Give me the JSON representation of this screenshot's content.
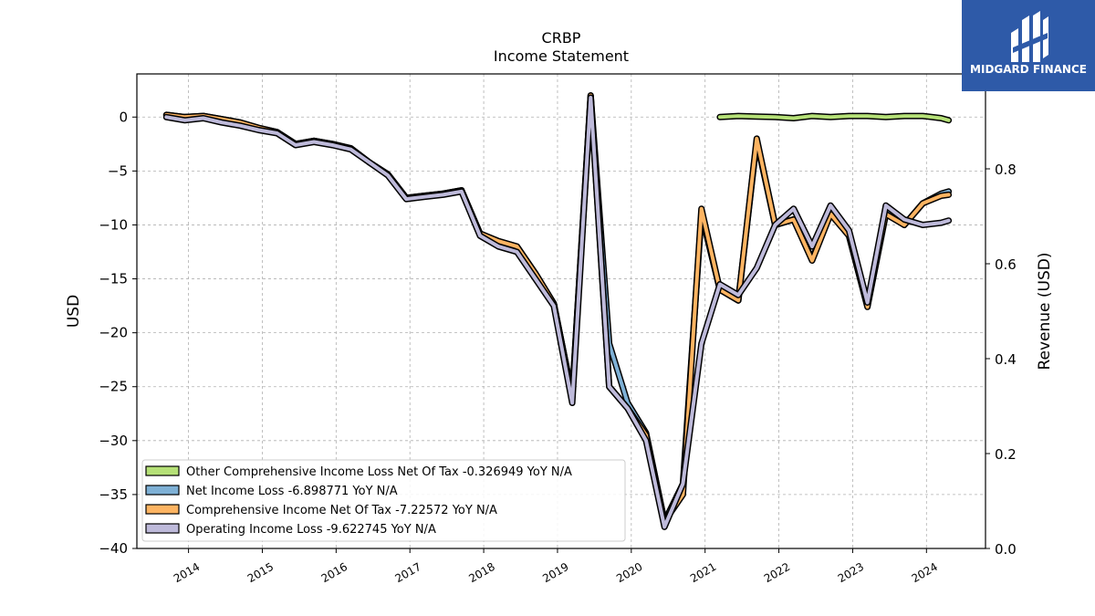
{
  "logo": {
    "text": "MIDGARD FINANCE",
    "bg_color": "#2e5aa8"
  },
  "chart_data": {
    "type": "line",
    "title": "CRBP",
    "subtitle": "Income Statement",
    "ylabel": "USD",
    "ylabel_right": "Revenue (USD)",
    "ylim": [
      -40,
      4
    ],
    "ylim_right": [
      0,
      1.0
    ],
    "yticks": [
      0,
      -5,
      -10,
      -15,
      -20,
      -25,
      -30,
      -35,
      -40
    ],
    "yticks_right": [
      0.0,
      0.2,
      0.4,
      0.6,
      0.8
    ],
    "xlim": [
      2013.3,
      2024.8
    ],
    "xticks": [
      2014,
      2015,
      2016,
      2017,
      2018,
      2019,
      2020,
      2021,
      2022,
      2023,
      2024
    ],
    "grid": true,
    "legend_position": "lower-left",
    "series": [
      {
        "name": "Other Comprehensive Income Loss Net Of Tax  -0.326949 YoY N/A",
        "color": "#b5e077",
        "x": [
          2021.2,
          2021.45,
          2021.7,
          2021.95,
          2022.2,
          2022.45,
          2022.7,
          2022.95,
          2023.2,
          2023.45,
          2023.7,
          2023.95,
          2024.2,
          2024.3
        ],
        "y": [
          0.0,
          0.1,
          0.05,
          0.0,
          -0.1,
          0.1,
          0.0,
          0.1,
          0.1,
          0.0,
          0.1,
          0.1,
          -0.1,
          -0.3
        ]
      },
      {
        "name": "Net Income Loss  -6.898771 YoY N/A",
        "color": "#7eb0d5",
        "x": [
          2013.7,
          2013.95,
          2014.2,
          2014.45,
          2014.7,
          2014.95,
          2015.2,
          2015.45,
          2015.7,
          2015.95,
          2016.2,
          2016.45,
          2016.7,
          2016.95,
          2017.2,
          2017.45,
          2017.7,
          2017.95,
          2018.2,
          2018.45,
          2018.7,
          2018.95,
          2019.2,
          2019.45,
          2019.7,
          2019.95,
          2020.2,
          2020.45,
          2020.7,
          2020.95,
          2021.2,
          2021.45,
          2021.7,
          2021.95,
          2022.2,
          2022.45,
          2022.7,
          2022.95,
          2023.2,
          2023.45,
          2023.7,
          2023.95,
          2024.2,
          2024.3
        ],
        "y": [
          0.2,
          0.0,
          0.1,
          -0.2,
          -0.5,
          -1.0,
          -1.4,
          -2.5,
          -2.2,
          -2.5,
          -2.9,
          -4.2,
          -5.3,
          -7.5,
          -7.3,
          -7.1,
          -6.8,
          -10.8,
          -11.5,
          -12.0,
          -14.5,
          -17.3,
          -25.8,
          2.0,
          -21.0,
          -26.5,
          -29.3,
          -37.5,
          -34.0,
          -9.0,
          -16.0,
          -17.0,
          -2.2,
          -10.0,
          -9.5,
          -13.2,
          -8.8,
          -11.0,
          -17.5,
          -8.5,
          -10.0,
          -8.0,
          -7.1,
          -6.9
        ]
      },
      {
        "name": "Comprehensive Income Net Of Tax  -7.22572 YoY N/A",
        "color": "#fdb462",
        "x": [
          2013.7,
          2013.95,
          2014.2,
          2014.45,
          2014.7,
          2014.95,
          2015.2,
          2015.45,
          2015.7,
          2015.95,
          2016.2,
          2016.45,
          2016.7,
          2016.95,
          2017.2,
          2017.45,
          2017.7,
          2017.95,
          2018.2,
          2018.45,
          2018.7,
          2018.95,
          2019.2,
          2019.45,
          2019.7,
          2019.95,
          2020.2,
          2020.45,
          2020.7,
          2020.95,
          2021.2,
          2021.45,
          2021.7,
          2021.95,
          2022.2,
          2022.45,
          2022.7,
          2022.95,
          2023.2,
          2023.45,
          2023.7,
          2023.95,
          2024.2,
          2024.3
        ],
        "y": [
          0.2,
          0.0,
          0.1,
          -0.2,
          -0.5,
          -1.0,
          -1.4,
          -2.5,
          -2.2,
          -2.5,
          -2.9,
          -4.2,
          -5.3,
          -7.5,
          -7.3,
          -7.1,
          -6.8,
          -10.8,
          -11.5,
          -12.0,
          -14.5,
          -17.3,
          -25.8,
          2.0,
          -25.0,
          -27.0,
          -29.5,
          -37.5,
          -35.0,
          -8.5,
          -16.0,
          -17.0,
          -2.0,
          -10.0,
          -9.5,
          -13.3,
          -9.0,
          -11.0,
          -17.6,
          -9.0,
          -10.0,
          -8.0,
          -7.3,
          -7.2
        ]
      },
      {
        "name": "Operating Income Loss  -9.622745 YoY N/A",
        "color": "#bebada",
        "x": [
          2013.7,
          2013.95,
          2014.2,
          2014.45,
          2014.7,
          2014.95,
          2015.2,
          2015.45,
          2015.7,
          2015.95,
          2016.2,
          2016.45,
          2016.7,
          2016.95,
          2017.2,
          2017.45,
          2017.7,
          2017.95,
          2018.2,
          2018.45,
          2018.7,
          2018.95,
          2019.2,
          2019.45,
          2019.7,
          2019.95,
          2020.2,
          2020.45,
          2020.7,
          2020.95,
          2021.2,
          2021.45,
          2021.7,
          2021.95,
          2022.2,
          2022.45,
          2022.7,
          2022.95,
          2023.2,
          2023.45,
          2023.7,
          2023.95,
          2024.2,
          2024.3
        ],
        "y": [
          0.0,
          -0.3,
          -0.1,
          -0.5,
          -0.8,
          -1.2,
          -1.5,
          -2.6,
          -2.3,
          -2.6,
          -3.0,
          -4.2,
          -5.4,
          -7.6,
          -7.4,
          -7.2,
          -6.9,
          -11.0,
          -12.0,
          -12.5,
          -15.0,
          -17.5,
          -26.5,
          1.8,
          -25.0,
          -27.0,
          -30.0,
          -38.0,
          -34.0,
          -21.0,
          -15.5,
          -16.5,
          -14.0,
          -10.0,
          -8.5,
          -12.0,
          -8.2,
          -10.5,
          -17.2,
          -8.2,
          -9.5,
          -10.0,
          -9.8,
          -9.6
        ]
      }
    ]
  }
}
